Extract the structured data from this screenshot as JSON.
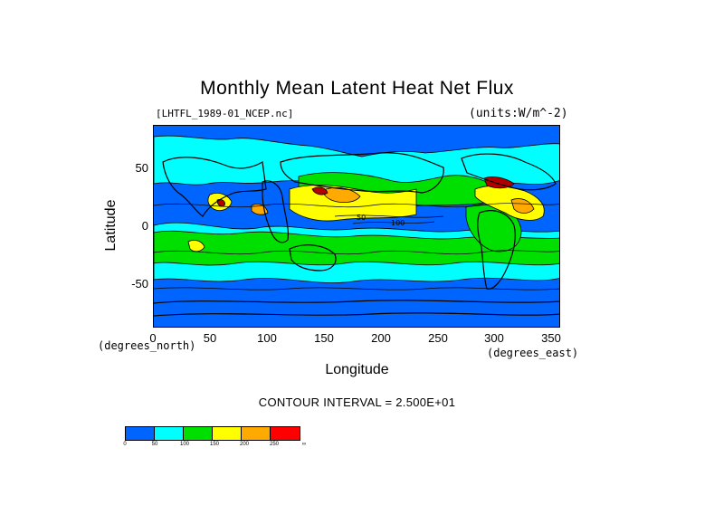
{
  "title": "Monthly Mean Latent Heat Net Flux",
  "file_label": "[LHTFL_1989-01_NCEP.nc]",
  "units_label": "(units:W/m^-2)",
  "xlabel": "Longitude",
  "ylabel": "Latitude",
  "x_units": "(degrees_east)",
  "y_units": "(degrees_north)",
  "contour_interval": "CONTOUR INTERVAL = 2.500E+01",
  "x_ticks": [
    "0",
    "50",
    "100",
    "150",
    "200",
    "250",
    "300",
    "350"
  ],
  "y_ticks": [
    "50",
    "0",
    "-50"
  ],
  "colorbar": {
    "colors": [
      "#0064ff",
      "#00ffff",
      "#00e000",
      "#ffff00",
      "#ffaa00",
      "#ff0000"
    ],
    "labels": [
      "0",
      "50",
      "100",
      "150",
      "200",
      "250",
      "∞"
    ]
  },
  "map_labels": [
    "50",
    "100"
  ],
  "chart_data": {
    "type": "heatmap",
    "title": "Monthly Mean Latent Heat Net Flux",
    "xlabel": "Longitude",
    "ylabel": "Latitude",
    "xlim": [
      0,
      360
    ],
    "ylim": [
      -90,
      90
    ],
    "value_units": "W/m^-2",
    "contour_interval": 25,
    "levels": [
      0,
      50,
      100,
      150,
      200,
      250
    ]
  }
}
